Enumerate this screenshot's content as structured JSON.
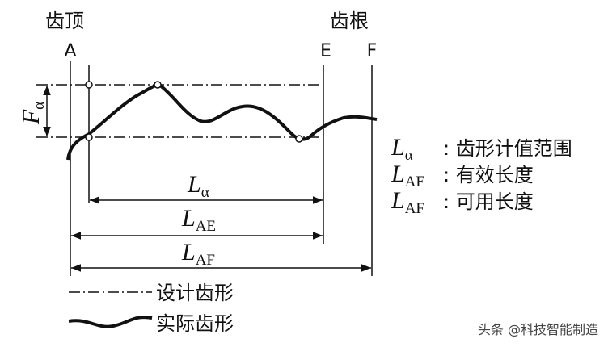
{
  "labels": {
    "tip": "齿顶",
    "root": "齿根",
    "a": "A",
    "e": "E",
    "f": "F"
  },
  "tolerance": {
    "symbol": "F",
    "subscript": "α"
  },
  "dimensions": [
    {
      "symbol": "L",
      "subscript": "α"
    },
    {
      "symbol": "L",
      "subscript": "AE"
    },
    {
      "symbol": "L",
      "subscript": "AF"
    }
  ],
  "definitions": [
    {
      "symbol": "L",
      "subscript": "α",
      "text": ": 齿形计值范围"
    },
    {
      "symbol": "L",
      "subscript": "AE",
      "text": ": 有效长度"
    },
    {
      "symbol": "L",
      "subscript": "AF",
      "text": ": 可用长度"
    }
  ],
  "legend": [
    "设计齿形",
    "实际齿形"
  ],
  "watermark": "头条 @科技智能制造"
}
